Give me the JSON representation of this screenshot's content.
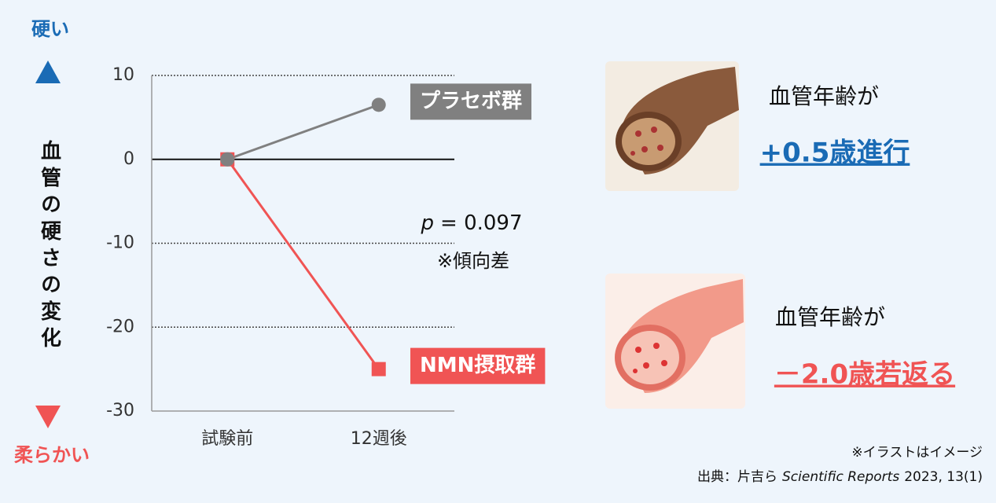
{
  "chart_data": {
    "type": "line",
    "y_label": "血管の硬さの変化",
    "top_annotation": "硬い",
    "bottom_annotation": "柔らかい",
    "categories": [
      "試験前",
      "12週後"
    ],
    "series": [
      {
        "name": "プラセボ群",
        "color": "#808080",
        "marker": "circle",
        "values": [
          0,
          6.5
        ]
      },
      {
        "name": "NMN摂取群",
        "color": "#f05454",
        "marker": "square",
        "values": [
          0,
          -25
        ]
      }
    ],
    "ylim": [
      -30,
      10
    ],
    "yticks": [
      -30,
      -20,
      -10,
      0,
      10
    ],
    "grid": true,
    "p_value": {
      "symbol": "p",
      "text": "= 0.097"
    },
    "note": "※傾向差"
  },
  "panels": [
    {
      "heading": "血管年齢が",
      "result": "+0.5歳進行",
      "color": "#1a6bb5"
    },
    {
      "heading": "血管年齢が",
      "result": "－2.0歳若返る",
      "color": "#f05454"
    }
  ],
  "footer": {
    "disclaimer": "※イラストはイメージ",
    "source_prefix": "出典：片吉ら",
    "journal": "Scientific Reports",
    "citation": "2023, 13(1)"
  }
}
